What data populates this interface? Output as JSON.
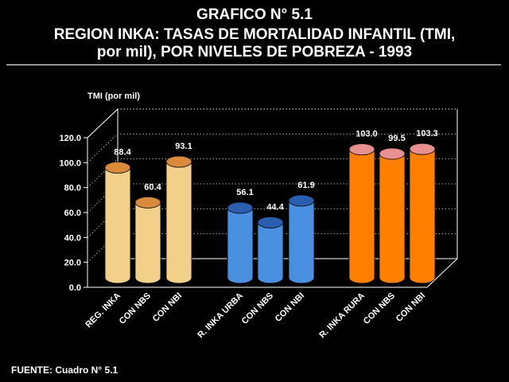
{
  "header": {
    "line1": "GRAFICO N° 5.1",
    "line2": "REGION INKA: TASAS DE MORTALIDAD INFANTIL (TMI,",
    "line3": "por mil), POR NIVELES DE POBREZA - 1993"
  },
  "footer": {
    "source": "FUENTE: Cuadro N° 5.1"
  },
  "chart_data": {
    "type": "bar",
    "ylabel": "TMI (por mil)",
    "ylim": [
      0,
      120
    ],
    "yticks": [
      "0.0",
      "20.0",
      "40.0",
      "60.0",
      "80.0",
      "100.0",
      "120.0"
    ],
    "grid": true,
    "categories": [
      "REG. INKA",
      "CON NBS",
      "CON NBI",
      "R. INKA URBA",
      "CON NBS",
      "CON NBI",
      "R. INKA RURA",
      "CON NBS",
      "CON NBI"
    ],
    "values": [
      88.4,
      60.4,
      93.1,
      56.1,
      44.4,
      61.9,
      103.0,
      99.5,
      103.3
    ],
    "value_labels": [
      "88.4",
      "60.4",
      "93.1",
      "56.1",
      "44.4",
      "61.9",
      "103.0",
      "99.5",
      "103.3"
    ],
    "groups": [
      {
        "color": "#f2d08a",
        "top_color": "#d98a3a"
      },
      {
        "color": "#4a90e0",
        "top_color": "#2a5fb0"
      },
      {
        "color": "#ff8000",
        "top_color": "#e89090"
      }
    ]
  }
}
